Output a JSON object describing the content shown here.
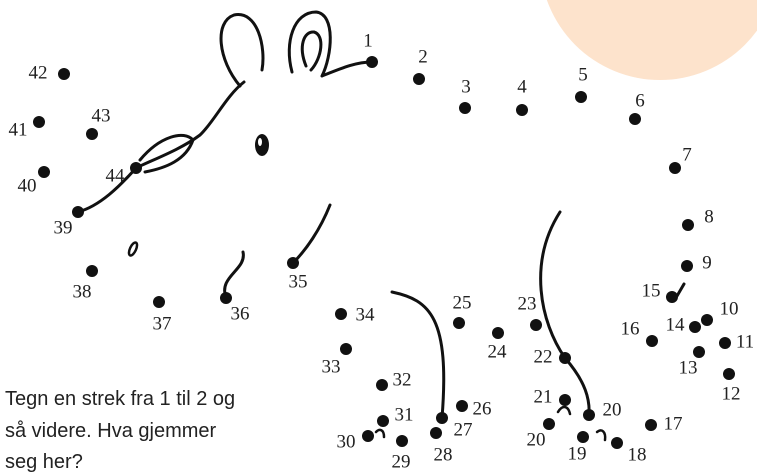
{
  "instructions": [
    "Tegn en strek fra 1 til 2 og",
    "så videre. Hva gjemmer",
    "seg her?"
  ],
  "dots": [
    "1",
    "2",
    "3",
    "4",
    "5",
    "6",
    "7",
    "8",
    "9",
    "10",
    "11",
    "12",
    "13",
    "14",
    "15",
    "16",
    "17",
    "18",
    "19",
    "20",
    "20",
    "21",
    "22",
    "23",
    "24",
    "25",
    "26",
    "27",
    "28",
    "29",
    "30",
    "31",
    "32",
    "33",
    "34",
    "35",
    "36",
    "37",
    "38",
    "39",
    "40",
    "41",
    "42",
    "43",
    "44"
  ]
}
